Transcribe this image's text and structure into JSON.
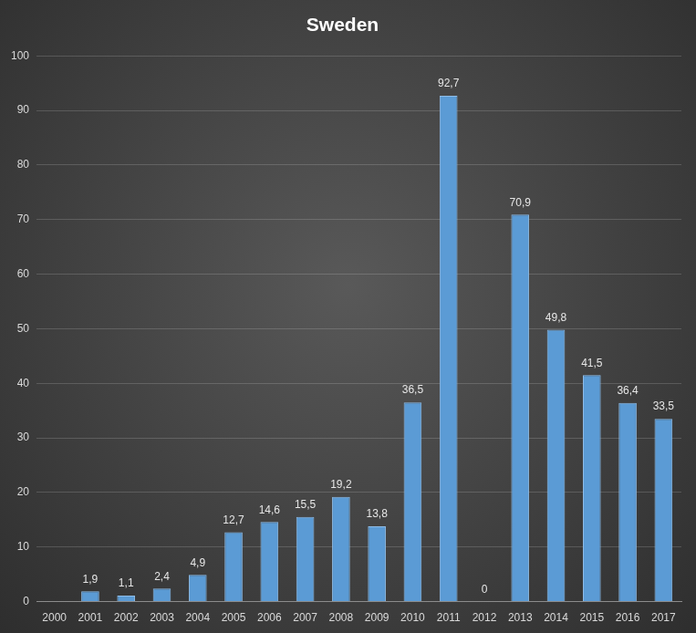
{
  "chart_data": {
    "type": "bar",
    "title": "Sweden",
    "categories": [
      "2000",
      "2001",
      "2002",
      "2003",
      "2004",
      "2005",
      "2006",
      "2007",
      "2008",
      "2009",
      "2010",
      "2011",
      "2012",
      "2013",
      "2014",
      "2015",
      "2016",
      "2017"
    ],
    "values": [
      null,
      1.9,
      1.1,
      2.4,
      4.9,
      12.7,
      14.6,
      15.5,
      19.2,
      13.8,
      36.5,
      92.7,
      0,
      70.9,
      49.8,
      41.5,
      36.4,
      33.5
    ],
    "value_labels": [
      null,
      "1,9",
      "1,1",
      "2,4",
      "4,9",
      "12,7",
      "14,6",
      "15,5",
      "19,2",
      "13,8",
      "36,5",
      "92,7",
      "0",
      "70,9",
      "49,8",
      "41,5",
      "36,4",
      "33,5"
    ],
    "color": "#5b9bd5",
    "ylim": [
      0,
      100
    ],
    "yticks": [
      0,
      10,
      20,
      30,
      40,
      50,
      60,
      70,
      80,
      90,
      100
    ],
    "grid": true,
    "data_labels": true
  }
}
